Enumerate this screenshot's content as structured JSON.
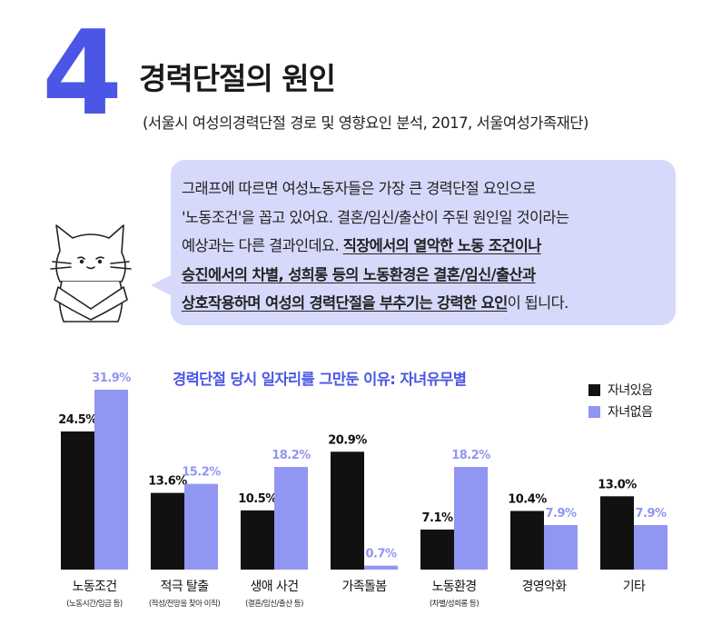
{
  "header": {
    "number": "4",
    "title": "경력단절의 원인",
    "source": "(서울시 여성의경력단절 경로 및 영향요인 분석, 2017, 서울여성가족재단)"
  },
  "bubble": {
    "line1": "그래프에 따르면 여성노동자들은 가장 큰 경력단절 요인으로",
    "line2": "'노동조건'을 꼽고 있어요. 결혼/임신/출산이 주된 원인일 것이라는",
    "line3_plain": "예상과는 다른 결과인데요. ",
    "line3_bold": "직장에서의 열악한 노동 조건이나",
    "line4_bold": "승진에서의 차별, 성희롱 등의 노동환경은 결혼/임신/출산과",
    "line5_bold": "상호작용하며 여성의 경력단절을 부추기는 강력한 요인",
    "line5_plain": "이 됩니다."
  },
  "colors": {
    "accent": "#4b55e6",
    "with_children": "#111111",
    "without_children": "#9096f2",
    "bubble_bg": "#d7d9fb"
  },
  "chart_data": {
    "type": "bar",
    "title": "경력단절 당시 일자리를 그만둔 이유: 자녀유무별",
    "categories": [
      "노동조건",
      "적극 탈출",
      "생애 사건",
      "가족돌봄",
      "노동환경",
      "경영악화",
      "기타"
    ],
    "sublabels": [
      "(노동시간/임금 등)",
      "(적성/전망을 찾아 이직)",
      "(결혼/임신/출산 등)",
      "",
      "(차별/성희롱 등)",
      "",
      ""
    ],
    "series": [
      {
        "name": "자녀있음",
        "values": [
          24.5,
          13.6,
          10.5,
          20.9,
          7.1,
          10.4,
          13.0
        ],
        "labels": [
          "24.5%",
          "13.6%",
          "10.5%",
          "20.9%",
          "7.1%",
          "10.4%",
          "13.0%"
        ]
      },
      {
        "name": "자녀없음",
        "values": [
          31.9,
          15.2,
          18.2,
          0.7,
          18.2,
          7.9,
          7.9
        ],
        "labels": [
          "31.9%",
          "15.2%",
          "18.2%",
          "0.7%",
          "18.2%",
          "7.9%",
          "7.9%"
        ]
      }
    ],
    "ylim": [
      0,
      31.9
    ],
    "legend_position": "top-right",
    "grid": false
  }
}
